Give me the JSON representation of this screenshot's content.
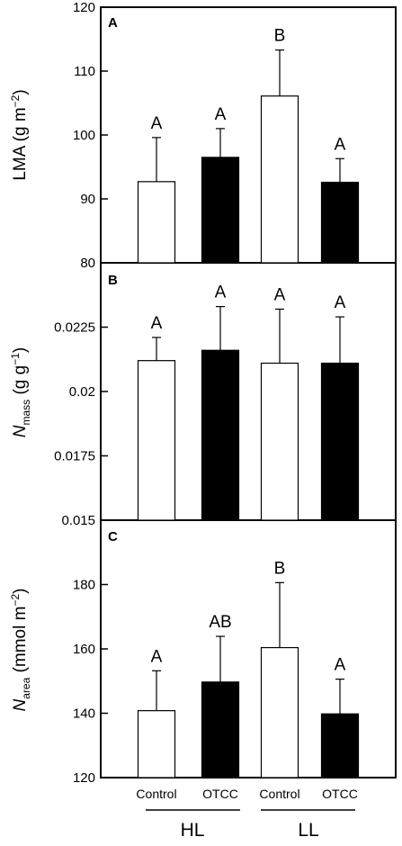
{
  "chart_data": [
    {
      "type": "bar",
      "panel": "A",
      "ylabel_main": "LMA (g m",
      "ylabel_sup": "−2",
      "ylabel_end": ")",
      "ylim": [
        80,
        120
      ],
      "ticks": [
        80,
        90,
        100,
        110,
        120
      ],
      "tick_labels": [
        "80",
        "90",
        "100",
        "110",
        "120"
      ],
      "categories": [
        "Control",
        "OTCC",
        "Control",
        "OTCC"
      ],
      "values": [
        92.7,
        96.5,
        106.1,
        92.6
      ],
      "errors": [
        6.9,
        4.5,
        7.2,
        3.7
      ],
      "letters": [
        "A",
        "A",
        "B",
        "A"
      ],
      "fills": [
        "#ffffff",
        "#000000",
        "#ffffff",
        "#000000"
      ]
    },
    {
      "type": "bar",
      "panel": "B",
      "ylabel_main": "N",
      "ylabel_sub": "mass",
      "ylabel_rest": " (g g",
      "ylabel_sup": "−1",
      "ylabel_end": ")",
      "ylim": [
        0.015,
        0.025
      ],
      "ticks": [
        0.015,
        0.0175,
        0.02,
        0.0225
      ],
      "tick_labels": [
        "0.015",
        "0.0175",
        "0.02",
        "0.0225"
      ],
      "categories": [
        "Control",
        "OTCC",
        "Control",
        "OTCC"
      ],
      "values": [
        0.0212,
        0.0216,
        0.0211,
        0.0211
      ],
      "errors": [
        0.0009,
        0.0017,
        0.0021,
        0.0018
      ],
      "letters": [
        "A",
        "A",
        "A",
        "A"
      ],
      "fills": [
        "#ffffff",
        "#000000",
        "#ffffff",
        "#000000"
      ]
    },
    {
      "type": "bar",
      "panel": "C",
      "ylabel_main": "N",
      "ylabel_sub": "area",
      "ylabel_rest": " (mmol m",
      "ylabel_sup": "−2",
      "ylabel_end": ")",
      "ylim": [
        120,
        200
      ],
      "ticks": [
        120,
        140,
        160,
        180
      ],
      "tick_labels": [
        "120",
        "140",
        "160",
        "180"
      ],
      "categories": [
        "Control",
        "OTCC",
        "Control",
        "OTCC"
      ],
      "values": [
        140.8,
        149.7,
        160.4,
        139.8
      ],
      "errors": [
        12.4,
        14.2,
        20.2,
        10.8
      ],
      "letters": [
        "A",
        "AB",
        "B",
        "A"
      ],
      "fills": [
        "#ffffff",
        "#000000",
        "#ffffff",
        "#000000"
      ]
    }
  ],
  "x_labels": [
    "Control",
    "OTCC",
    "Control",
    "OTCC"
  ],
  "groups": [
    "HL",
    "LL"
  ]
}
